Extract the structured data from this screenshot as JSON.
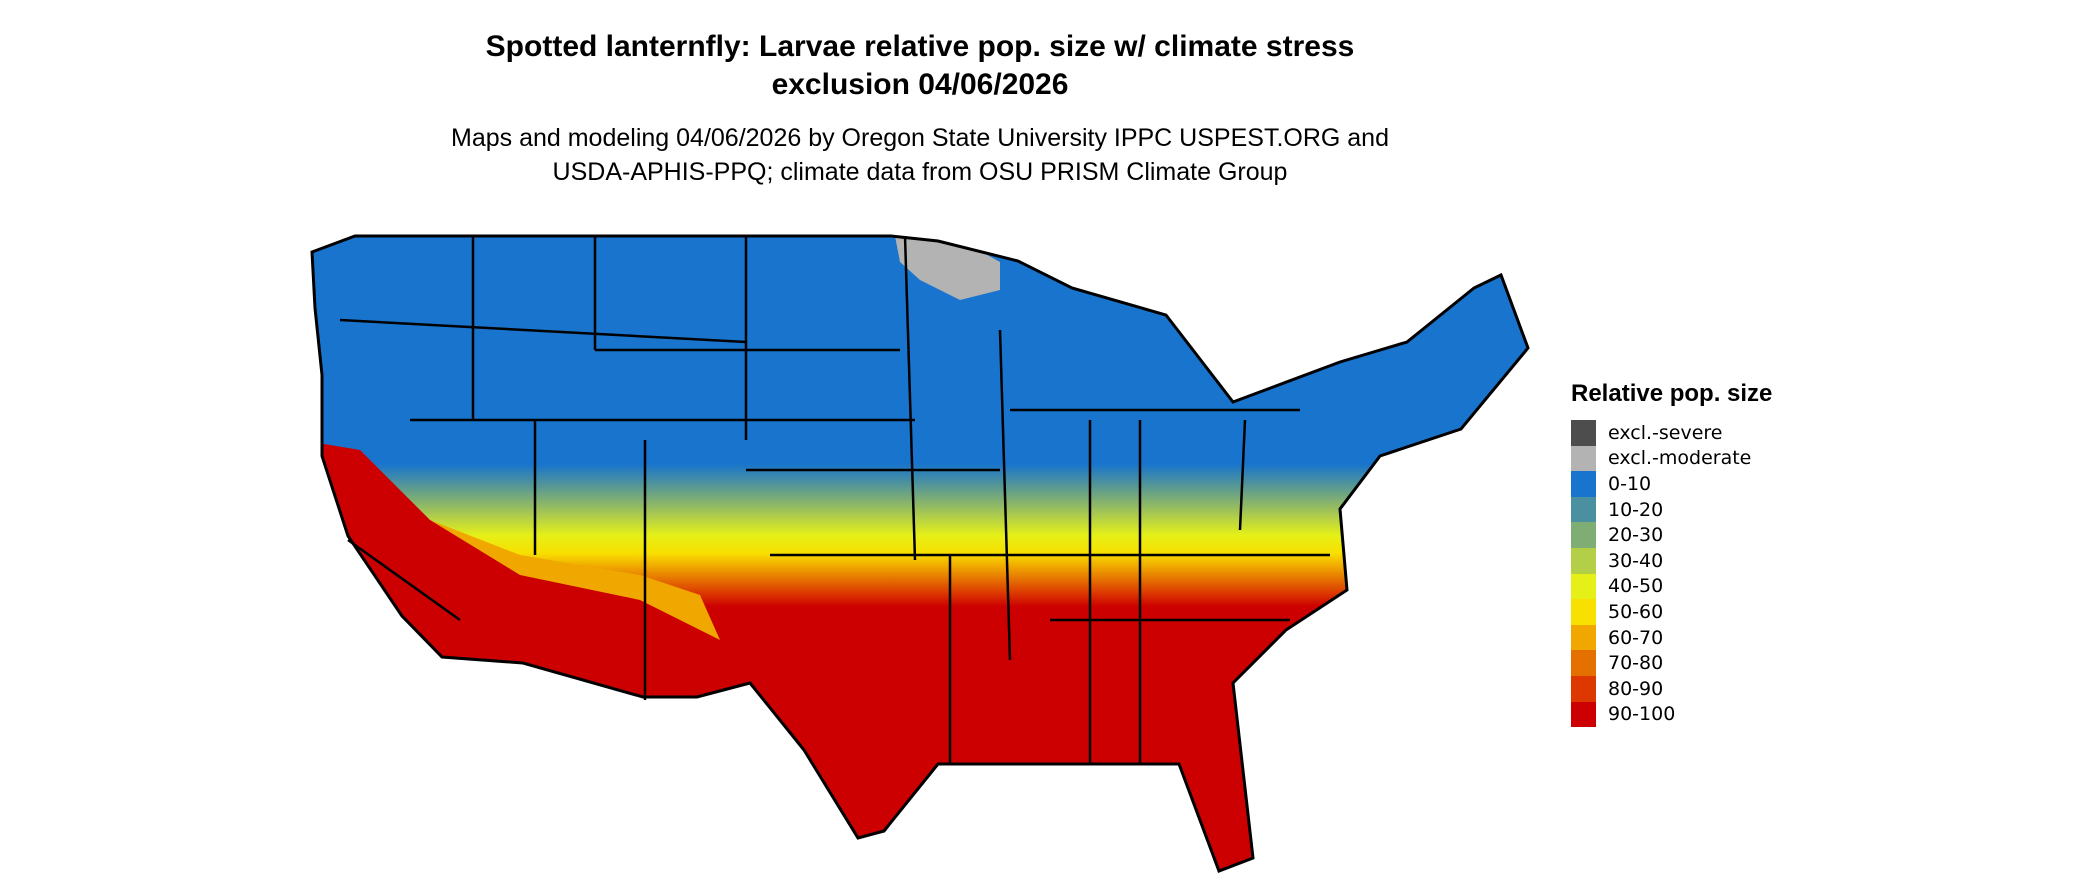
{
  "title_line1": "Spotted lanternfly: Larvae relative pop. size w/ climate stress",
  "title_line2": "exclusion 04/06/2026",
  "subtitle_line1": "Maps and modeling 04/06/2026 by Oregon State University IPPC USPEST.ORG and",
  "subtitle_line2": "USDA-APHIS-PPQ; climate data from OSU PRISM Climate Group",
  "chart_data": {
    "type": "heatmap",
    "region": "Contiguous United States",
    "legend": {
      "title": "Relative pop. size",
      "placement": "right",
      "items": [
        {
          "label": "excl.-severe",
          "color": "#4d4d4d"
        },
        {
          "label": "excl.-moderate",
          "color": "#b3b3b3"
        },
        {
          "label": "0-10",
          "color": "#1874cd"
        },
        {
          "label": "10-20",
          "color": "#4a90a0"
        },
        {
          "label": "20-30",
          "color": "#7fae74"
        },
        {
          "label": "30-40",
          "color": "#b3cf48"
        },
        {
          "label": "40-50",
          "color": "#e5f018"
        },
        {
          "label": "50-60",
          "color": "#f8e000"
        },
        {
          "label": "60-70",
          "color": "#f0a800"
        },
        {
          "label": "70-80",
          "color": "#e47000"
        },
        {
          "label": "80-90",
          "color": "#dc3800"
        },
        {
          "label": "90-100",
          "color": "#cc0000"
        }
      ]
    },
    "pattern": "0-10 across northern states; 20-60 band across central states (KS, MO, KY, VA); 90-100 across southern states and California; excl.-moderate in northern Minnesota"
  }
}
